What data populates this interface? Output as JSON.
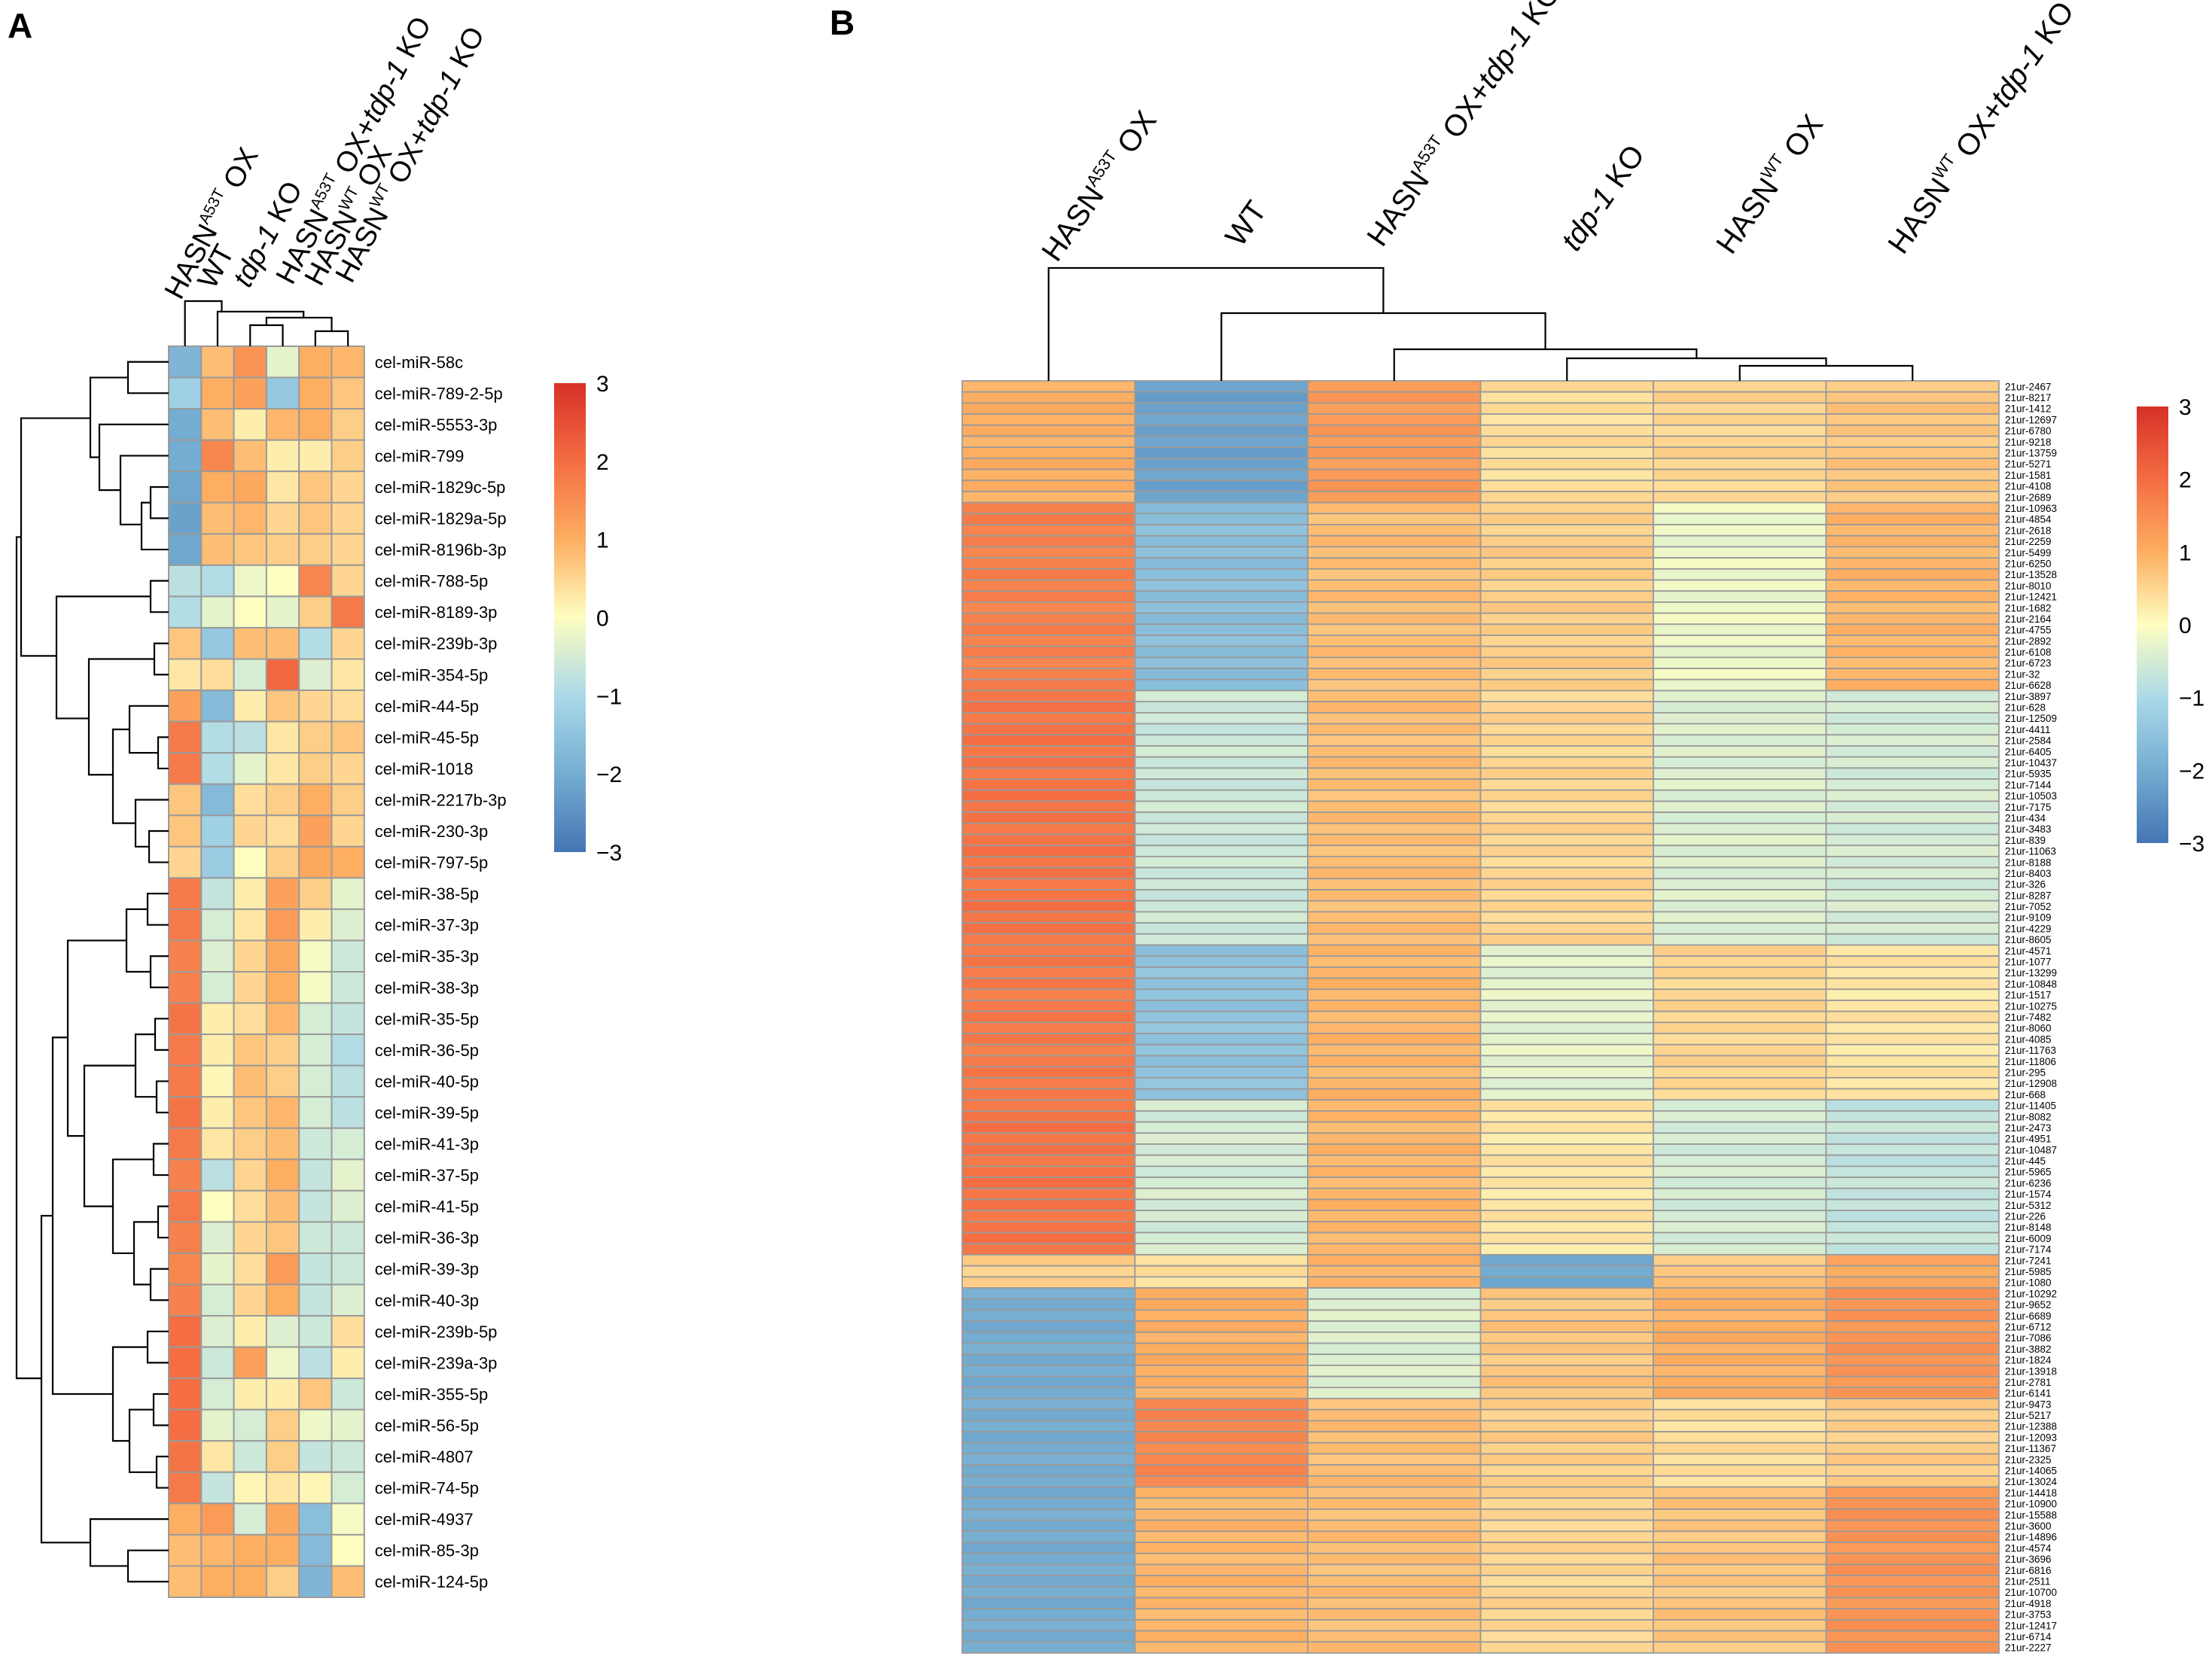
{
  "panels": {
    "a_letter": "A",
    "b_letter": "B"
  },
  "colors": {
    "low": "#4575b4",
    "mid": "#fefec0",
    "high": "#d73027",
    "grid": "#9a9a9a",
    "tree": "#000000"
  },
  "chart_data": [
    {
      "type": "heatmap",
      "panel": "A",
      "title": "",
      "columns": [
        {
          "prefix": "HASN",
          "sup": "A53T",
          "rest": " OX",
          "italic": ""
        },
        {
          "prefix": "WT",
          "sup": "",
          "rest": "",
          "italic": ""
        },
        {
          "prefix": "",
          "sup": "",
          "rest": " KO",
          "italic": "tdp-1"
        },
        {
          "prefix": "HASN",
          "sup": "A53T",
          "rest": " OX+",
          "italic": "tdp-1",
          "tail": " KO"
        },
        {
          "prefix": "HASN",
          "sup": "WT",
          "rest": " OX",
          "italic": ""
        },
        {
          "prefix": "HASN",
          "sup": "WT",
          "rest": " OX+",
          "italic": "tdp-1",
          "tail": " KO"
        }
      ],
      "rows": [
        "cel-miR-58c",
        "cel-miR-789-2-5p",
        "cel-miR-5553-3p",
        "cel-miR-799",
        "cel-miR-1829c-5p",
        "cel-miR-1829a-5p",
        "cel-miR-8196b-3p",
        "cel-miR-788-5p",
        "cel-miR-8189-3p",
        "cel-miR-239b-3p",
        "cel-miR-354-5p",
        "cel-miR-44-5p",
        "cel-miR-45-5p",
        "cel-miR-1018",
        "cel-miR-2217b-3p",
        "cel-miR-230-3p",
        "cel-miR-797-5p",
        "cel-miR-38-5p",
        "cel-miR-37-3p",
        "cel-miR-35-3p",
        "cel-miR-38-3p",
        "cel-miR-35-5p",
        "cel-miR-36-5p",
        "cel-miR-40-5p",
        "cel-miR-39-5p",
        "cel-miR-41-3p",
        "cel-miR-37-5p",
        "cel-miR-41-5p",
        "cel-miR-36-3p",
        "cel-miR-39-3p",
        "cel-miR-40-3p",
        "cel-miR-239b-5p",
        "cel-miR-239a-3p",
        "cel-miR-355-5p",
        "cel-miR-56-5p",
        "cel-miR-4807",
        "cel-miR-74-5p",
        "cel-miR-4937",
        "cel-miR-85-3p",
        "cel-miR-124-5p"
      ],
      "values": [
        [
          -1.8,
          0.8,
          1.4,
          -0.3,
          1.0,
          0.9
        ],
        [
          -1.2,
          1.0,
          1.2,
          -1.4,
          1.0,
          0.7
        ],
        [
          -2.0,
          0.8,
          0.2,
          0.9,
          1.0,
          0.6
        ],
        [
          -2.0,
          1.6,
          0.8,
          0.2,
          0.2,
          0.6
        ],
        [
          -2.1,
          1.0,
          1.1,
          0.3,
          0.7,
          0.5
        ],
        [
          -2.2,
          0.8,
          0.9,
          0.5,
          0.7,
          0.5
        ],
        [
          -2.1,
          0.8,
          0.7,
          0.6,
          0.6,
          0.5
        ],
        [
          -0.8,
          -0.9,
          -0.2,
          0.0,
          1.6,
          0.5
        ],
        [
          -0.9,
          -0.3,
          0.0,
          -0.3,
          0.6,
          1.8
        ],
        [
          0.7,
          -1.4,
          0.8,
          0.8,
          -0.9,
          0.5
        ],
        [
          0.3,
          0.4,
          -0.5,
          2.1,
          -0.4,
          0.3
        ],
        [
          1.2,
          -1.7,
          0.2,
          0.7,
          0.5,
          0.4
        ],
        [
          1.8,
          -0.9,
          -0.8,
          0.3,
          0.6,
          0.7
        ],
        [
          1.8,
          -0.9,
          -0.3,
          0.3,
          0.6,
          0.5
        ],
        [
          0.7,
          -1.7,
          0.4,
          0.6,
          1.0,
          0.6
        ],
        [
          0.7,
          -1.2,
          0.5,
          0.4,
          1.2,
          0.5
        ],
        [
          0.5,
          -1.3,
          0.0,
          0.6,
          1.1,
          1.0
        ],
        [
          1.8,
          -0.7,
          0.2,
          1.2,
          0.6,
          -0.3
        ],
        [
          1.8,
          -0.5,
          0.3,
          1.3,
          0.2,
          -0.4
        ],
        [
          1.7,
          -0.4,
          0.5,
          1.1,
          -0.1,
          -0.6
        ],
        [
          1.7,
          -0.5,
          0.5,
          1.0,
          -0.1,
          -0.6
        ],
        [
          1.9,
          0.2,
          0.4,
          0.9,
          -0.5,
          -0.7
        ],
        [
          1.8,
          0.2,
          0.7,
          0.6,
          -0.5,
          -0.9
        ],
        [
          1.8,
          0.1,
          0.8,
          0.6,
          -0.5,
          -0.8
        ],
        [
          1.9,
          0.2,
          0.7,
          0.9,
          -0.5,
          -0.8
        ],
        [
          1.8,
          0.3,
          0.6,
          0.8,
          -0.6,
          -0.5
        ],
        [
          1.7,
          -0.8,
          0.5,
          1.0,
          -0.7,
          -0.3
        ],
        [
          1.8,
          0.0,
          0.4,
          0.8,
          -0.7,
          -0.4
        ],
        [
          1.7,
          -0.4,
          0.5,
          0.7,
          -0.6,
          -0.6
        ],
        [
          1.6,
          -0.3,
          0.4,
          1.3,
          -0.7,
          -0.6
        ],
        [
          1.7,
          -0.5,
          0.5,
          1.0,
          -0.7,
          -0.4
        ],
        [
          2.0,
          -0.4,
          0.2,
          -0.4,
          -0.6,
          0.4
        ],
        [
          2.0,
          -0.6,
          1.2,
          -0.2,
          -0.8,
          0.2
        ],
        [
          2.0,
          -0.5,
          0.2,
          0.2,
          0.7,
          -0.6
        ],
        [
          2.0,
          -0.3,
          -0.5,
          0.6,
          -0.2,
          -0.3
        ],
        [
          1.9,
          0.3,
          -0.6,
          0.6,
          -0.7,
          -0.6
        ],
        [
          1.8,
          -0.7,
          0.1,
          0.3,
          0.1,
          -0.5
        ],
        [
          1.0,
          1.3,
          -0.5,
          1.1,
          -1.6,
          -0.1
        ],
        [
          0.8,
          0.9,
          1.0,
          1.0,
          -1.7,
          0.0
        ],
        [
          0.8,
          1.0,
          1.0,
          0.6,
          -1.8,
          0.8
        ]
      ],
      "legend": {
        "min": -3,
        "max": 3,
        "ticks": [
          "3",
          "2",
          "1",
          "0",
          "−1",
          "−2",
          "−3"
        ]
      }
    },
    {
      "type": "heatmap",
      "panel": "B",
      "title": "",
      "columns": [
        {
          "prefix": "HASN",
          "sup": "A53T",
          "rest": " OX",
          "italic": ""
        },
        {
          "prefix": "WT",
          "sup": "",
          "rest": "",
          "italic": ""
        },
        {
          "prefix": "HASN",
          "sup": "A53T",
          "rest": " OX+",
          "italic": "tdp-1",
          "tail": " KO"
        },
        {
          "prefix": "",
          "sup": "",
          "rest": " KO",
          "italic": "tdp-1"
        },
        {
          "prefix": "HASN",
          "sup": "WT",
          "rest": " OX",
          "italic": ""
        },
        {
          "prefix": "HASN",
          "sup": "WT",
          "rest": " OX+",
          "italic": "tdp-1",
          "tail": " KO"
        }
      ],
      "rows": [
        "21ur-2467",
        "21ur-8217",
        "21ur-1412",
        "21ur-12697",
        "21ur-6780",
        "21ur-9218",
        "21ur-13759",
        "21ur-5271",
        "21ur-1581",
        "21ur-4108",
        "21ur-2689",
        "21ur-10963",
        "21ur-4854",
        "21ur-2618",
        "21ur-2259",
        "21ur-5499",
        "21ur-6250",
        "21ur-13528",
        "21ur-8010",
        "21ur-12421",
        "21ur-1682",
        "21ur-2164",
        "21ur-4755",
        "21ur-2892",
        "21ur-6108",
        "21ur-6723",
        "21ur-32",
        "21ur-6628",
        "21ur-3897",
        "21ur-628",
        "21ur-12509",
        "21ur-4411",
        "21ur-2584",
        "21ur-6405",
        "21ur-10437",
        "21ur-5935",
        "21ur-7144",
        "21ur-10503",
        "21ur-7175",
        "21ur-434",
        "21ur-3483",
        "21ur-839",
        "21ur-11063",
        "21ur-8188",
        "21ur-8403",
        "21ur-326",
        "21ur-8287",
        "21ur-7052",
        "21ur-9109",
        "21ur-4229",
        "21ur-8605",
        "21ur-4571",
        "21ur-1077",
        "21ur-13299",
        "21ur-10848",
        "21ur-1517",
        "21ur-10275",
        "21ur-7482",
        "21ur-8060",
        "21ur-4085",
        "21ur-11763",
        "21ur-11806",
        "21ur-295",
        "21ur-12908",
        "21ur-668",
        "21ur-11405",
        "21ur-8082",
        "21ur-2473",
        "21ur-4951",
        "21ur-10487",
        "21ur-445",
        "21ur-5965",
        "21ur-6236",
        "21ur-1574",
        "21ur-5312",
        "21ur-226",
        "21ur-8148",
        "21ur-6009",
        "21ur-7174",
        "21ur-7241",
        "21ur-5985",
        "21ur-1080",
        "21ur-10292",
        "21ur-9652",
        "21ur-6689",
        "21ur-6712",
        "21ur-7086",
        "21ur-3882",
        "21ur-1824",
        "21ur-13918",
        "21ur-2781",
        "21ur-6141",
        "21ur-9473",
        "21ur-5217",
        "21ur-12388",
        "21ur-12093",
        "21ur-11367",
        "21ur-2325",
        "21ur-14065",
        "21ur-13024",
        "21ur-14418",
        "21ur-10900",
        "21ur-15588",
        "21ur-3600",
        "21ur-14896",
        "21ur-4574",
        "21ur-3696",
        "21ur-6816",
        "21ur-2511",
        "21ur-10700",
        "21ur-4918",
        "21ur-3753",
        "21ur-12417",
        "21ur-6714",
        "21ur-2227"
      ],
      "blocks": [
        {
          "count": 11,
          "values": [
            1.0,
            -2.2,
            1.3,
            0.4,
            0.5,
            0.7
          ]
        },
        {
          "count": 17,
          "values": [
            1.7,
            -1.6,
            0.8,
            0.6,
            -0.2,
            0.9
          ]
        },
        {
          "count": 23,
          "values": [
            1.9,
            -0.6,
            0.8,
            0.5,
            -0.4,
            -0.5
          ]
        },
        {
          "count": 14,
          "values": [
            1.8,
            -1.5,
            0.9,
            -0.3,
            0.5,
            0.3
          ]
        },
        {
          "count": 14,
          "values": [
            1.9,
            -0.5,
            0.9,
            0.3,
            -0.5,
            -0.7
          ]
        },
        {
          "count": 3,
          "values": [
            0.6,
            0.4,
            0.9,
            -2.1,
            0.7,
            1.1
          ]
        },
        {
          "count": 10,
          "values": [
            -2.0,
            1.0,
            -0.4,
            0.7,
            1.0,
            1.4
          ]
        },
        {
          "count": 8,
          "values": [
            -2.0,
            1.6,
            0.8,
            0.6,
            0.4,
            0.6
          ]
        },
        {
          "count": 15,
          "values": [
            -2.0,
            0.9,
            0.8,
            0.5,
            0.7,
            1.4
          ]
        }
      ],
      "legend": {
        "min": -3,
        "max": 3,
        "ticks": [
          "3",
          "2",
          "1",
          "0",
          "−1",
          "−2",
          "−3"
        ]
      }
    }
  ]
}
